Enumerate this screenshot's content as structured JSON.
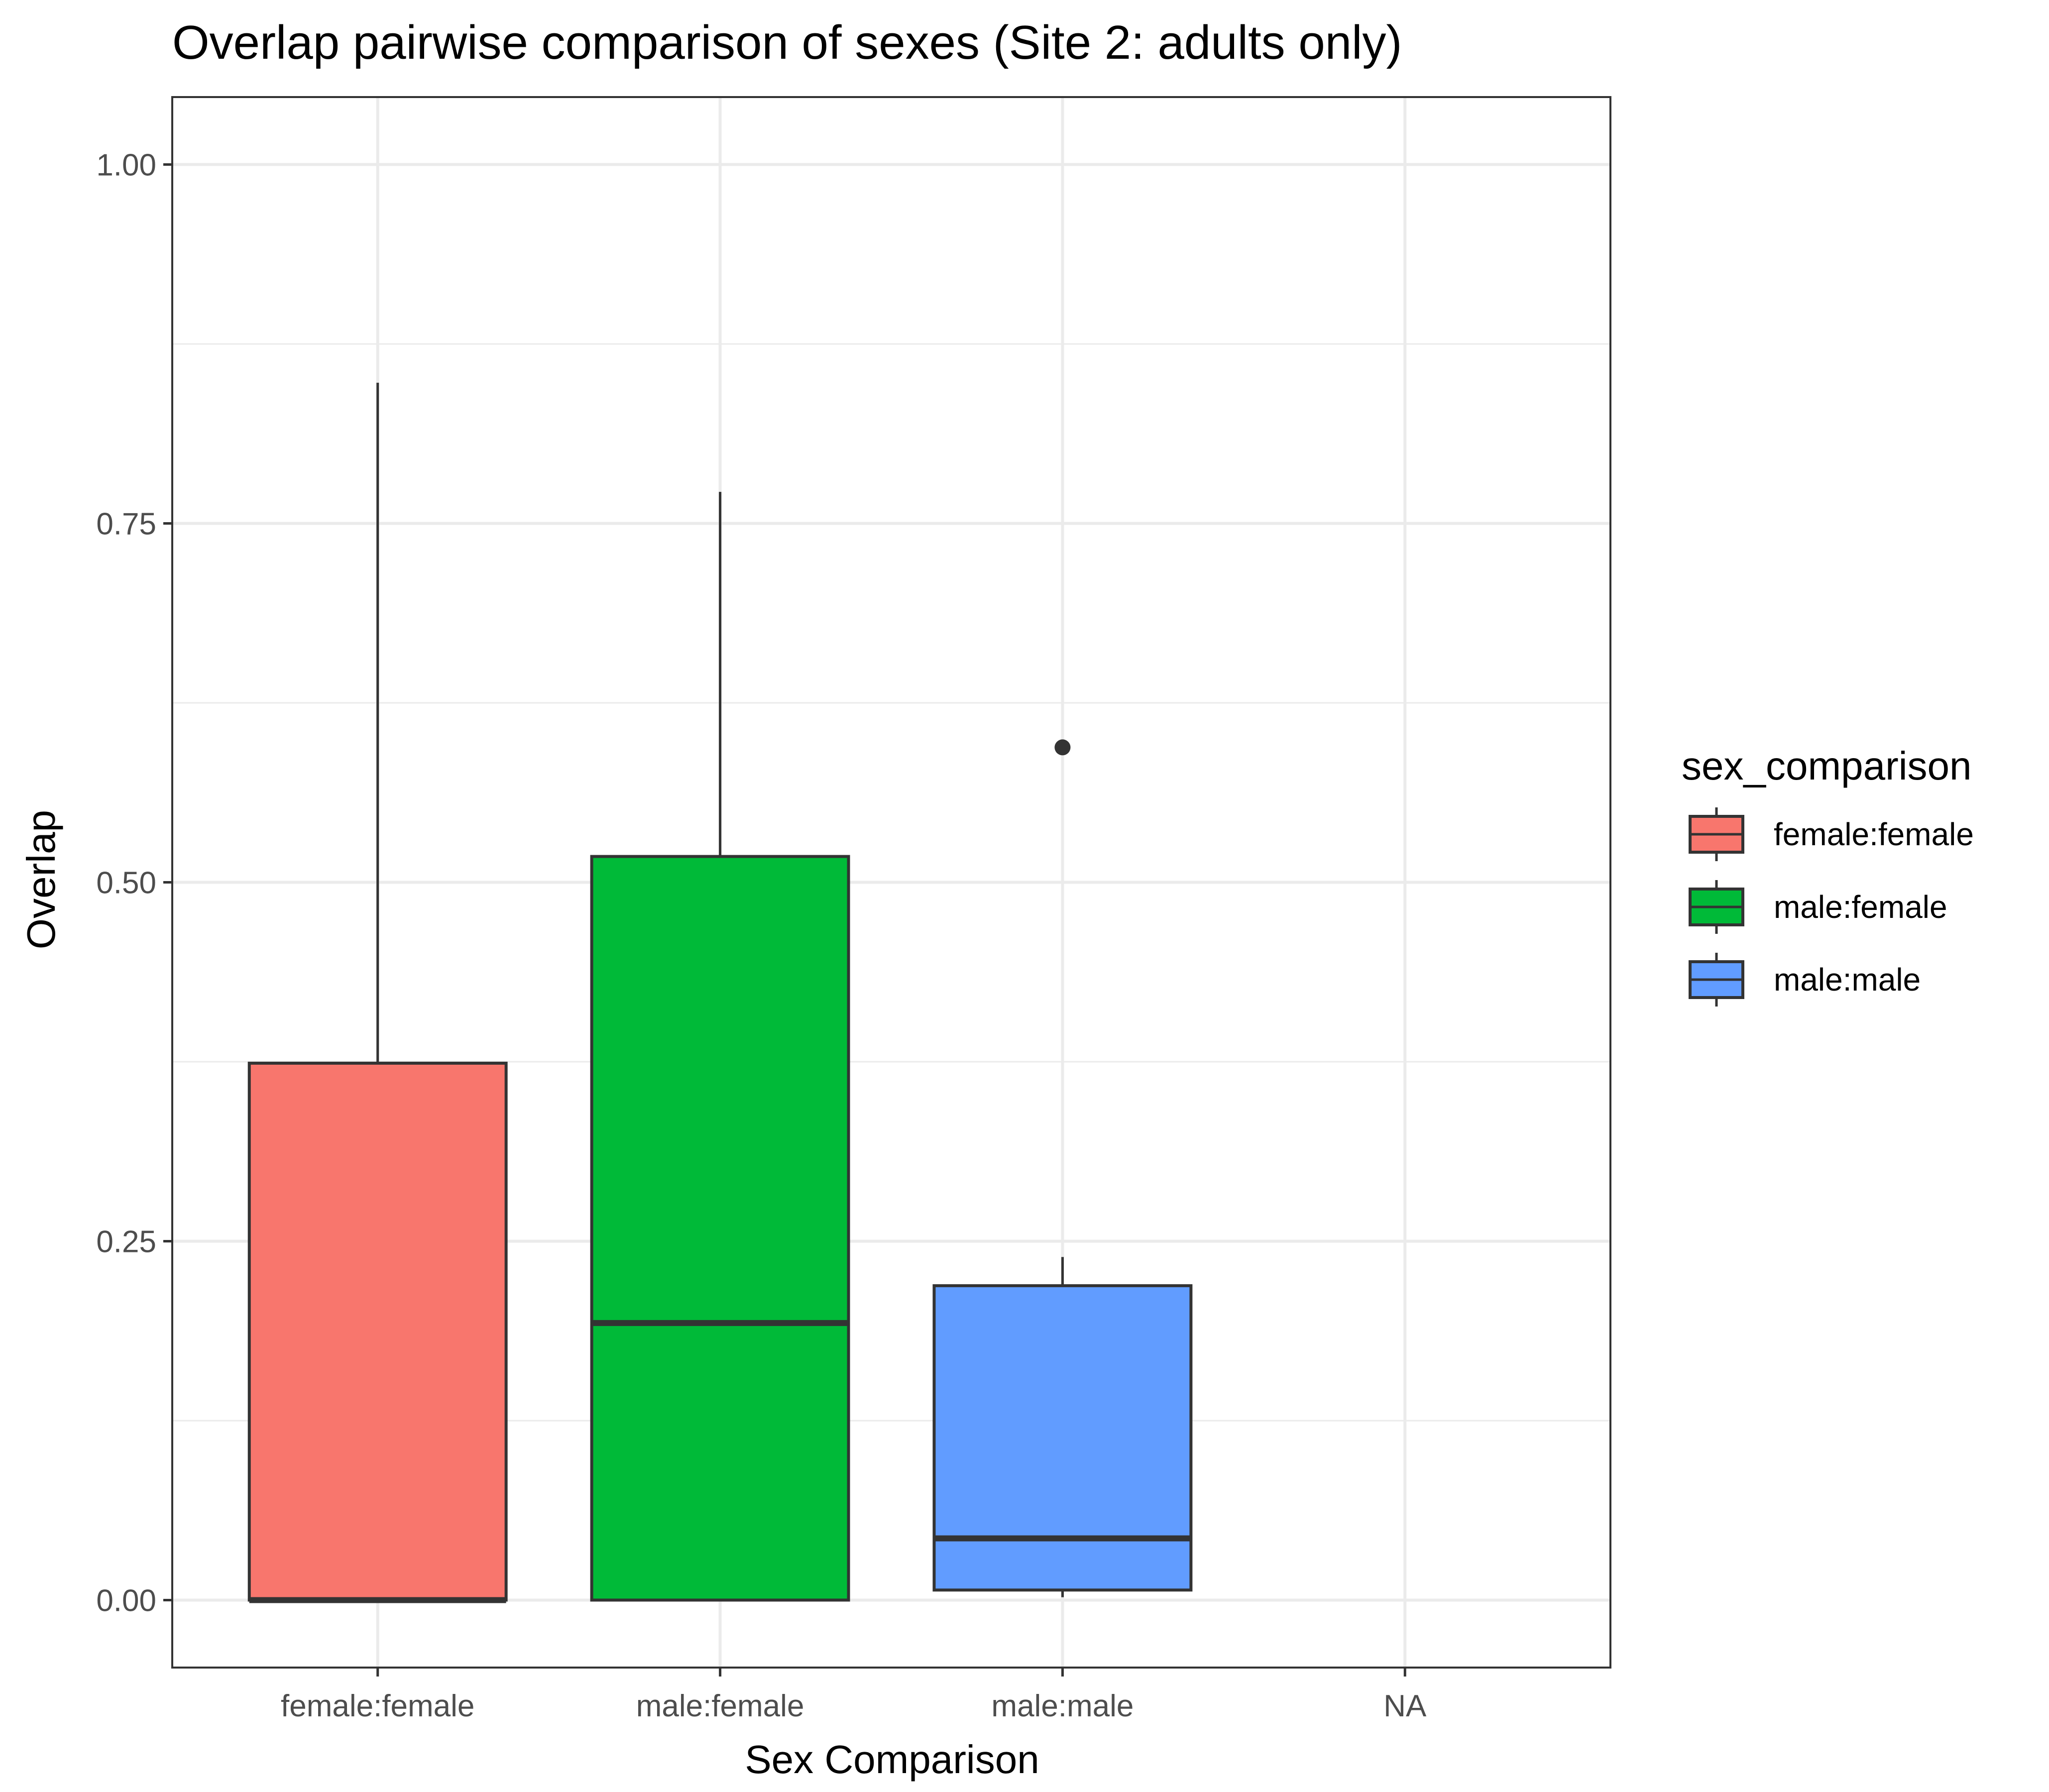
{
  "chart_data": {
    "type": "boxplot",
    "title": "Overlap pairwise comparison of sexes (Site 2: adults only)",
    "xlabel": "Sex Comparison",
    "ylabel": "Overlap",
    "categories": [
      "female:female",
      "male:female",
      "male:male",
      "NA"
    ],
    "ylim": [
      -0.047,
      1.047
    ],
    "yticks": [
      0.0,
      0.25,
      0.5,
      0.75,
      1.0
    ],
    "ytick_labels": [
      "0.00",
      "0.25",
      "0.50",
      "0.75",
      "1.00"
    ],
    "grid": true,
    "legend": {
      "title": "sex_comparison",
      "position": "right",
      "entries": [
        "female:female",
        "male:female",
        "male:male"
      ]
    },
    "series": [
      {
        "category": "female:female",
        "fill": "#F8766D",
        "min": 0.0,
        "q1": 0.0,
        "median": 0.0,
        "q3": 0.374,
        "max": 0.848,
        "outliers": []
      },
      {
        "category": "male:female",
        "fill": "#00BA38",
        "min": 0.0,
        "q1": 0.0,
        "median": 0.193,
        "q3": 0.518,
        "max": 0.772,
        "outliers": []
      },
      {
        "category": "male:male",
        "fill": "#619CFF",
        "min": 0.002,
        "q1": 0.007,
        "median": 0.043,
        "q3": 0.219,
        "max": 0.239,
        "outliers": [
          0.594
        ]
      },
      {
        "category": "NA",
        "fill": "#999999",
        "min": null,
        "q1": null,
        "median": null,
        "q3": null,
        "max": null,
        "outliers": []
      }
    ]
  }
}
